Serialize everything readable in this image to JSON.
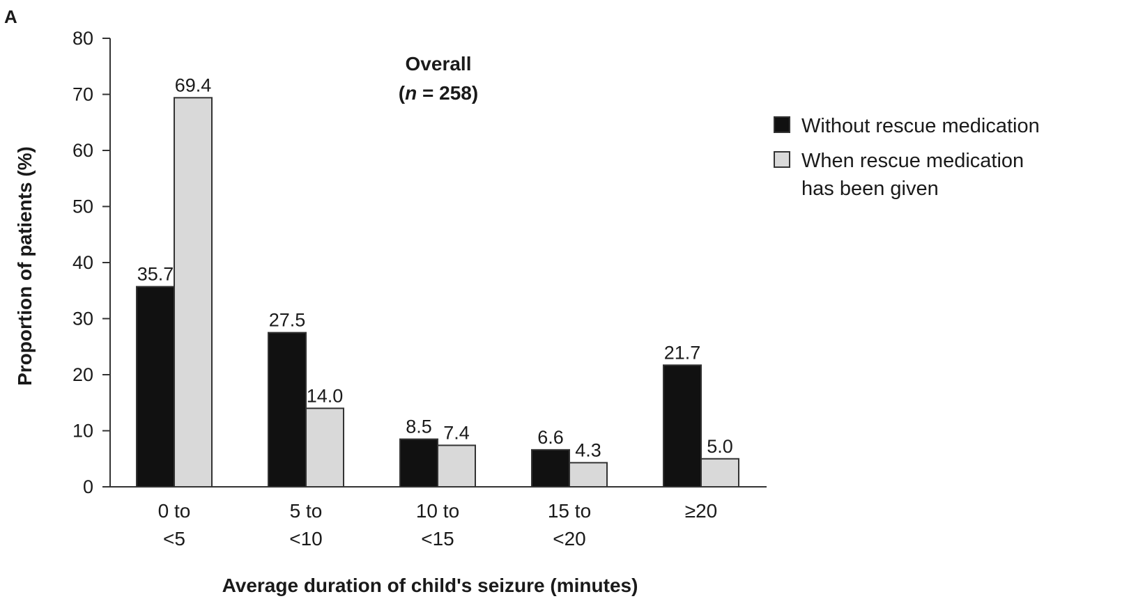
{
  "panel_label": "A",
  "chart_data": {
    "type": "bar",
    "annotation": {
      "line1": "Overall",
      "line2_prefix": "(",
      "line2_italic": "n",
      "line2_suffix": " = 258)"
    },
    "xlabel": "Average duration of child's seizure (minutes)",
    "ylabel": "Proportion of patients (%)",
    "ylim": [
      0,
      80
    ],
    "yticks": [
      "0",
      "10",
      "20",
      "30",
      "40",
      "50",
      "60",
      "70",
      "80"
    ],
    "categories": [
      [
        "0 to",
        "<5"
      ],
      [
        "5 to",
        "<10"
      ],
      [
        "10 to",
        "<15"
      ],
      [
        "15 to",
        "<20"
      ],
      [
        "≥20"
      ]
    ],
    "series": [
      {
        "name": "Without rescue medication",
        "color": "#111111",
        "values": [
          35.7,
          27.5,
          8.5,
          6.6,
          21.7
        ],
        "labels": [
          "35.7",
          "27.5",
          "8.5",
          "6.6",
          "21.7"
        ]
      },
      {
        "name_lines": [
          "When rescue medication",
          "has been given"
        ],
        "name": "When rescue medication has been given",
        "color": "#d9d9d9",
        "values": [
          69.4,
          14.0,
          7.4,
          4.3,
          5.0
        ],
        "labels": [
          "69.4",
          "14.0",
          "7.4",
          "4.3",
          "5.0"
        ]
      }
    ],
    "legend_position": "right",
    "grid": false
  }
}
